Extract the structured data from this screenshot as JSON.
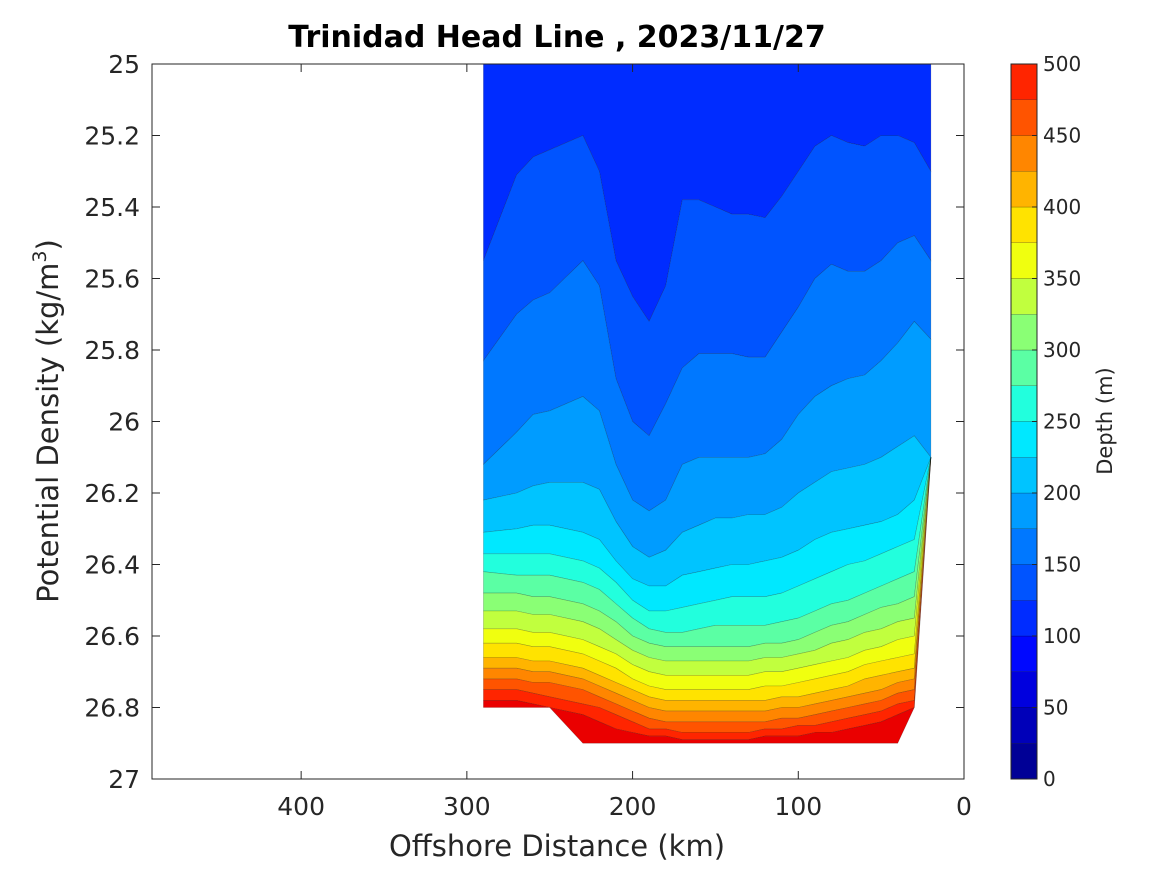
{
  "chart_data": {
    "type": "contourf",
    "title": "Trinidad Head Line , 2023/11/27",
    "xlabel": "Offshore Distance (km)",
    "ylabel_main": "Potential Density (kg/m",
    "ylabel_sup": "3",
    "ylabel_close": ")",
    "xlim": [
      490,
      0
    ],
    "x_reversed": true,
    "x_ticks": [
      400,
      300,
      200,
      100,
      0
    ],
    "ylim": [
      25,
      27
    ],
    "y_reversed": true,
    "y_ticks": [
      25,
      25.2,
      25.4,
      25.6,
      25.8,
      26,
      26.2,
      26.4,
      26.6,
      26.8,
      27
    ],
    "y_tick_labels": [
      "25",
      "25.2",
      "25.4",
      "25.6",
      "25.8",
      "26",
      "26.2",
      "26.4",
      "26.6",
      "26.8",
      "27"
    ],
    "colorbar": {
      "label": "Depth (m)",
      "range": [
        0,
        500
      ],
      "ticks": [
        0,
        50,
        100,
        150,
        200,
        250,
        300,
        350,
        400,
        450,
        500
      ],
      "levels": [
        0,
        25,
        50,
        75,
        100,
        125,
        150,
        175,
        200,
        225,
        250,
        275,
        300,
        325,
        350,
        375,
        400,
        425,
        450,
        475,
        500
      ],
      "colors": [
        "#000096",
        "#0000b9",
        "#0000de",
        "#0008ff",
        "#002cff",
        "#0054ff",
        "#0078ff",
        "#009cff",
        "#00c4ff",
        "#00e8ff",
        "#22ffdd",
        "#5bffa4",
        "#8aff75",
        "#c1ff3e",
        "#f0ff0f",
        "#ffe300",
        "#ffb400",
        "#ff8600",
        "#ff5400",
        "#ff2500",
        "#ea0000",
        "#b80000"
      ]
    },
    "stations_km": [
      290,
      270,
      260,
      250,
      230,
      220,
      210,
      200,
      190,
      180,
      170,
      160,
      150,
      140,
      130,
      120,
      110,
      100,
      90,
      80,
      70,
      60,
      50,
      40,
      30,
      20
    ],
    "boundary": {
      "note": "data exists between station_km range and deepest density per station",
      "deepest_density": [
        26.8,
        26.8,
        26.8,
        26.8,
        26.9,
        26.9,
        26.9,
        26.9,
        26.9,
        26.9,
        26.9,
        26.9,
        26.9,
        26.9,
        26.9,
        26.9,
        26.9,
        26.9,
        26.9,
        26.9,
        26.9,
        26.9,
        26.9,
        26.9,
        26.8,
        26.1
      ]
    },
    "contours": [
      {
        "level": 75,
        "density": [
          25.0,
          25.0,
          25.0,
          25.0,
          25.0,
          25.0,
          25.0,
          25.0,
          25.0,
          25.0,
          25.0,
          25.0,
          25.0,
          25.0,
          25.0,
          25.0,
          25.0,
          25.0,
          25.0,
          25.0,
          25.0,
          25.0,
          25.0,
          25.0,
          25.0,
          25.0
        ]
      },
      {
        "level": 100,
        "density": [
          25.55,
          25.31,
          25.26,
          25.24,
          25.2,
          25.3,
          25.55,
          25.65,
          25.72,
          25.62,
          25.38,
          25.38,
          25.4,
          25.42,
          25.42,
          25.43,
          25.37,
          25.3,
          25.23,
          25.2,
          25.22,
          25.23,
          25.2,
          25.2,
          25.22,
          25.3
        ]
      },
      {
        "level": 125,
        "density": [
          25.83,
          25.7,
          25.66,
          25.64,
          25.55,
          25.62,
          25.88,
          26.0,
          26.04,
          25.95,
          25.85,
          25.81,
          25.81,
          25.81,
          25.82,
          25.82,
          25.75,
          25.68,
          25.6,
          25.56,
          25.58,
          25.58,
          25.55,
          25.5,
          25.48,
          25.55
        ]
      },
      {
        "level": 150,
        "density": [
          26.12,
          26.03,
          25.98,
          25.97,
          25.93,
          25.97,
          26.12,
          26.22,
          26.25,
          26.22,
          26.12,
          26.1,
          26.1,
          26.1,
          26.1,
          26.09,
          26.05,
          25.98,
          25.93,
          25.9,
          25.88,
          25.87,
          25.83,
          25.78,
          25.72,
          25.77
        ]
      },
      {
        "level": 175,
        "density": [
          26.22,
          26.2,
          26.18,
          26.17,
          26.17,
          26.19,
          26.28,
          26.35,
          26.38,
          26.36,
          26.31,
          26.29,
          26.27,
          26.27,
          26.26,
          26.26,
          26.24,
          26.2,
          26.17,
          26.14,
          26.13,
          26.12,
          26.1,
          26.07,
          26.04,
          26.1
        ]
      },
      {
        "level": 200,
        "density": [
          26.31,
          26.3,
          26.29,
          26.29,
          26.31,
          26.33,
          26.39,
          26.44,
          26.46,
          26.46,
          26.43,
          26.42,
          26.41,
          26.4,
          26.4,
          26.39,
          26.38,
          26.36,
          26.33,
          26.31,
          26.3,
          26.29,
          26.28,
          26.26,
          26.22,
          26.22
        ]
      },
      {
        "level": 225,
        "density": [
          26.37,
          26.37,
          26.37,
          26.37,
          26.39,
          26.41,
          26.45,
          26.5,
          26.53,
          26.53,
          26.52,
          26.51,
          26.5,
          26.49,
          26.49,
          26.49,
          26.48,
          26.46,
          26.44,
          26.42,
          26.4,
          26.39,
          26.37,
          26.35,
          26.33,
          26.33
        ]
      },
      {
        "level": 250,
        "density": [
          26.42,
          26.43,
          26.43,
          26.43,
          26.45,
          26.47,
          26.51,
          26.55,
          26.58,
          26.59,
          26.59,
          26.58,
          26.57,
          26.57,
          26.57,
          26.57,
          26.56,
          26.55,
          26.53,
          26.51,
          26.5,
          26.48,
          26.46,
          26.44,
          26.42,
          26.42
        ]
      },
      {
        "level": 275,
        "density": [
          26.48,
          26.48,
          26.49,
          26.49,
          26.51,
          26.53,
          26.56,
          26.6,
          26.62,
          26.63,
          26.63,
          26.63,
          26.63,
          26.63,
          26.63,
          26.62,
          26.62,
          26.61,
          26.59,
          26.57,
          26.56,
          26.54,
          26.52,
          26.51,
          26.49,
          26.49
        ]
      },
      {
        "level": 300,
        "density": [
          26.53,
          26.53,
          26.54,
          26.54,
          26.56,
          26.58,
          26.61,
          26.64,
          26.66,
          26.67,
          26.67,
          26.67,
          26.67,
          26.67,
          26.67,
          26.66,
          26.66,
          26.65,
          26.64,
          26.62,
          26.61,
          26.59,
          26.58,
          26.56,
          26.55,
          26.55
        ]
      },
      {
        "level": 325,
        "density": [
          26.58,
          26.58,
          26.59,
          26.59,
          26.61,
          26.63,
          26.65,
          26.68,
          26.7,
          26.71,
          26.71,
          26.71,
          26.71,
          26.71,
          26.71,
          26.7,
          26.7,
          26.69,
          26.68,
          26.67,
          26.66,
          26.64,
          26.63,
          26.61,
          26.6,
          26.6
        ]
      },
      {
        "level": 350,
        "density": [
          26.62,
          26.62,
          26.63,
          26.63,
          26.65,
          26.67,
          26.69,
          26.72,
          26.74,
          26.75,
          26.75,
          26.75,
          26.75,
          26.75,
          26.75,
          26.74,
          26.74,
          26.73,
          26.72,
          26.71,
          26.7,
          26.68,
          26.67,
          26.66,
          26.65,
          26.65
        ]
      },
      {
        "level": 375,
        "density": [
          26.66,
          26.66,
          26.67,
          26.67,
          26.69,
          26.71,
          26.73,
          26.75,
          26.77,
          26.78,
          26.78,
          26.78,
          26.78,
          26.78,
          26.78,
          26.78,
          26.77,
          26.77,
          26.76,
          26.75,
          26.74,
          26.72,
          26.71,
          26.7,
          26.69,
          26.69
        ]
      },
      {
        "level": 400,
        "density": [
          26.69,
          26.69,
          26.7,
          26.7,
          26.72,
          26.74,
          26.76,
          26.78,
          26.8,
          26.81,
          26.81,
          26.81,
          26.81,
          26.81,
          26.81,
          26.81,
          26.8,
          26.8,
          26.79,
          26.78,
          26.77,
          26.76,
          26.75,
          26.73,
          26.72,
          26.72
        ]
      },
      {
        "level": 425,
        "density": [
          26.72,
          26.72,
          26.73,
          26.73,
          26.75,
          26.77,
          26.79,
          26.81,
          26.83,
          26.84,
          26.84,
          26.84,
          26.84,
          26.84,
          26.84,
          26.84,
          26.83,
          26.83,
          26.82,
          26.81,
          26.8,
          26.79,
          26.78,
          26.76,
          26.75,
          26.75
        ]
      },
      {
        "level": 450,
        "density": [
          26.75,
          26.75,
          26.76,
          26.77,
          26.79,
          26.8,
          26.82,
          26.84,
          26.86,
          26.86,
          26.87,
          26.87,
          26.87,
          26.87,
          26.87,
          26.86,
          26.86,
          26.85,
          26.85,
          26.84,
          26.83,
          26.82,
          26.81,
          26.79,
          26.78,
          26.78
        ]
      },
      {
        "level": 475,
        "density": [
          26.78,
          26.78,
          26.79,
          26.8,
          26.82,
          26.84,
          26.86,
          26.87,
          26.88,
          26.88,
          26.89,
          26.89,
          26.89,
          26.89,
          26.89,
          26.88,
          26.88,
          26.88,
          26.87,
          26.87,
          26.86,
          26.85,
          26.84,
          26.82,
          26.81,
          26.81
        ]
      }
    ]
  }
}
